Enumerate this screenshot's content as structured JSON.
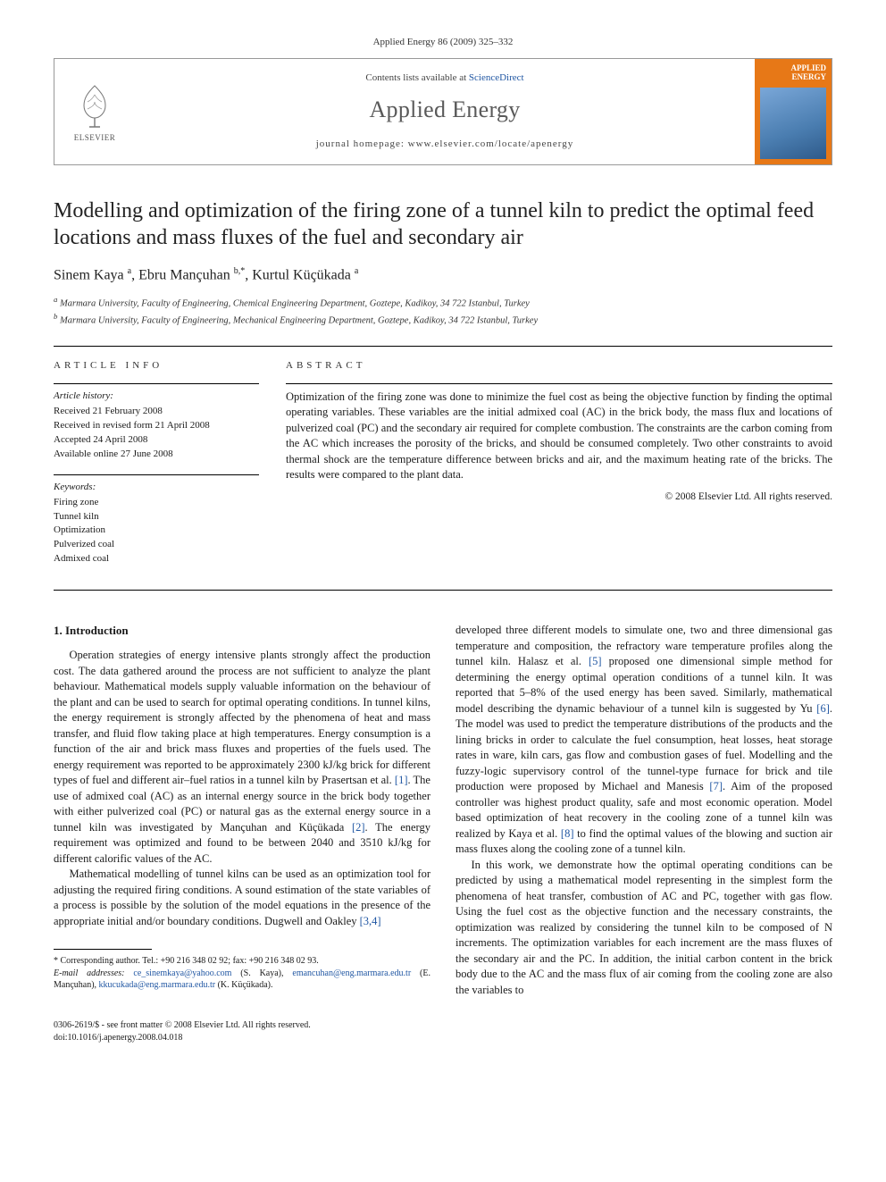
{
  "journal_ref": "Applied Energy 86 (2009) 325–332",
  "header": {
    "contents_prefix": "Contents lists available at ",
    "contents_link": "ScienceDirect",
    "journal_name": "Applied Energy",
    "homepage_prefix": "journal homepage: ",
    "homepage_url": "www.elsevier.com/locate/apenergy",
    "elsevier_label": "ELSEVIER",
    "cover_title": "APPLIED ENERGY"
  },
  "title": "Modelling and optimization of the firing zone of a tunnel kiln to predict the optimal feed locations and mass fluxes of the fuel and secondary air",
  "authors_html": "Sinem Kaya <sup>a</sup>, Ebru Mançuhan <sup>b,*</sup>, Kurtul Küçükada <sup>a</sup>",
  "affiliations": {
    "a": "Marmara University, Faculty of Engineering, Chemical Engineering Department, Goztepe, Kadikoy, 34 722 Istanbul, Turkey",
    "b": "Marmara University, Faculty of Engineering, Mechanical Engineering Department, Goztepe, Kadikoy, 34 722 Istanbul, Turkey"
  },
  "article_info": {
    "label": "ARTICLE INFO",
    "history_label": "Article history:",
    "history": [
      "Received 21 February 2008",
      "Received in revised form 21 April 2008",
      "Accepted 24 April 2008",
      "Available online 27 June 2008"
    ],
    "keywords_label": "Keywords:",
    "keywords": [
      "Firing zone",
      "Tunnel kiln",
      "Optimization",
      "Pulverized coal",
      "Admixed coal"
    ]
  },
  "abstract": {
    "label": "ABSTRACT",
    "text": "Optimization of the firing zone was done to minimize the fuel cost as being the objective function by finding the optimal operating variables. These variables are the initial admixed coal (AC) in the brick body, the mass flux and locations of pulverized coal (PC) and the secondary air required for complete combustion. The constraints are the carbon coming from the AC which increases the porosity of the bricks, and should be consumed completely. Two other constraints to avoid thermal shock are the temperature difference between bricks and air, and the maximum heating rate of the bricks. The results were compared to the plant data.",
    "copyright": "© 2008 Elsevier Ltd. All rights reserved."
  },
  "intro": {
    "heading": "1. Introduction",
    "p1": "Operation strategies of energy intensive plants strongly affect the production cost. The data gathered around the process are not sufficient to analyze the plant behaviour. Mathematical models supply valuable information on the behaviour of the plant and can be used to search for optimal operating conditions. In tunnel kilns, the energy requirement is strongly affected by the phenomena of heat and mass transfer, and fluid flow taking place at high temperatures. Energy consumption is a function of the air and brick mass fluxes and properties of the fuels used. The energy requirement was reported to be approximately 2300 kJ/kg brick for different types of fuel and different air–fuel ratios in a tunnel kiln by Prasertsan et al. [1]. The use of admixed coal (AC) as an internal energy source in the brick body together with either pulverized coal (PC) or natural gas as the external energy source in a tunnel kiln was investigated by Mançuhan and Küçükada [2]. The energy requirement was optimized and found to be between 2040 and 3510 kJ/kg for different calorific values of the AC.",
    "p2a": "Mathematical modelling of tunnel kilns can be used as an optimization tool for adjusting the required firing conditions. A sound estimation of the state variables of a process is possible by the solution of the model equations in the presence of the appropriate initial and/or boundary conditions. Dugwell and Oakley [3,4]",
    "p2b": "developed three different models to simulate one, two and three dimensional gas temperature and composition, the refractory ware temperature profiles along the tunnel kiln. Halasz et al. [5] proposed one dimensional simple method for determining the energy optimal operation conditions of a tunnel kiln. It was reported that 5–8% of the used energy has been saved. Similarly, mathematical model describing the dynamic behaviour of a tunnel kiln is suggested by Yu [6]. The model was used to predict the temperature distributions of the products and the lining bricks in order to calculate the fuel consumption, heat losses, heat storage rates in ware, kiln cars, gas flow and combustion gases of fuel. Modelling and the fuzzy-logic supervisory control of the tunnel-type furnace for brick and tile production were proposed by Michael and Manesis [7]. Aim of the proposed controller was highest product quality, safe and most economic operation. Model based optimization of heat recovery in the cooling zone of a tunnel kiln was realized by Kaya et al. [8] to find the optimal values of the blowing and suction air mass fluxes along the cooling zone of a tunnel kiln.",
    "p3": "In this work, we demonstrate how the optimal operating conditions can be predicted by using a mathematical model representing in the simplest form the phenomena of heat transfer, combustion of AC and PC, together with gas flow. Using the fuel cost as the objective function and the necessary constraints, the optimization was realized by considering the tunnel kiln to be composed of N increments. The optimization variables for each increment are the mass fluxes of the secondary air and the PC. In addition, the initial carbon content in the brick body due to the AC and the mass flux of air coming from the cooling zone are also the variables to"
  },
  "footnotes": {
    "corr": "* Corresponding author. Tel.: +90 216 348 02 92; fax: +90 216 348 02 93.",
    "email_label": "E-mail addresses:",
    "emails": "ce_sinemkaya@yahoo.com (S. Kaya), emancuhan@eng.marmara.edu.tr (E. Mançuhan), kkucukada@eng.marmara.edu.tr (K. Küçükada)."
  },
  "footer": {
    "line1": "0306-2619/$ - see front matter © 2008 Elsevier Ltd. All rights reserved.",
    "line2": "doi:10.1016/j.apenergy.2008.04.018"
  }
}
